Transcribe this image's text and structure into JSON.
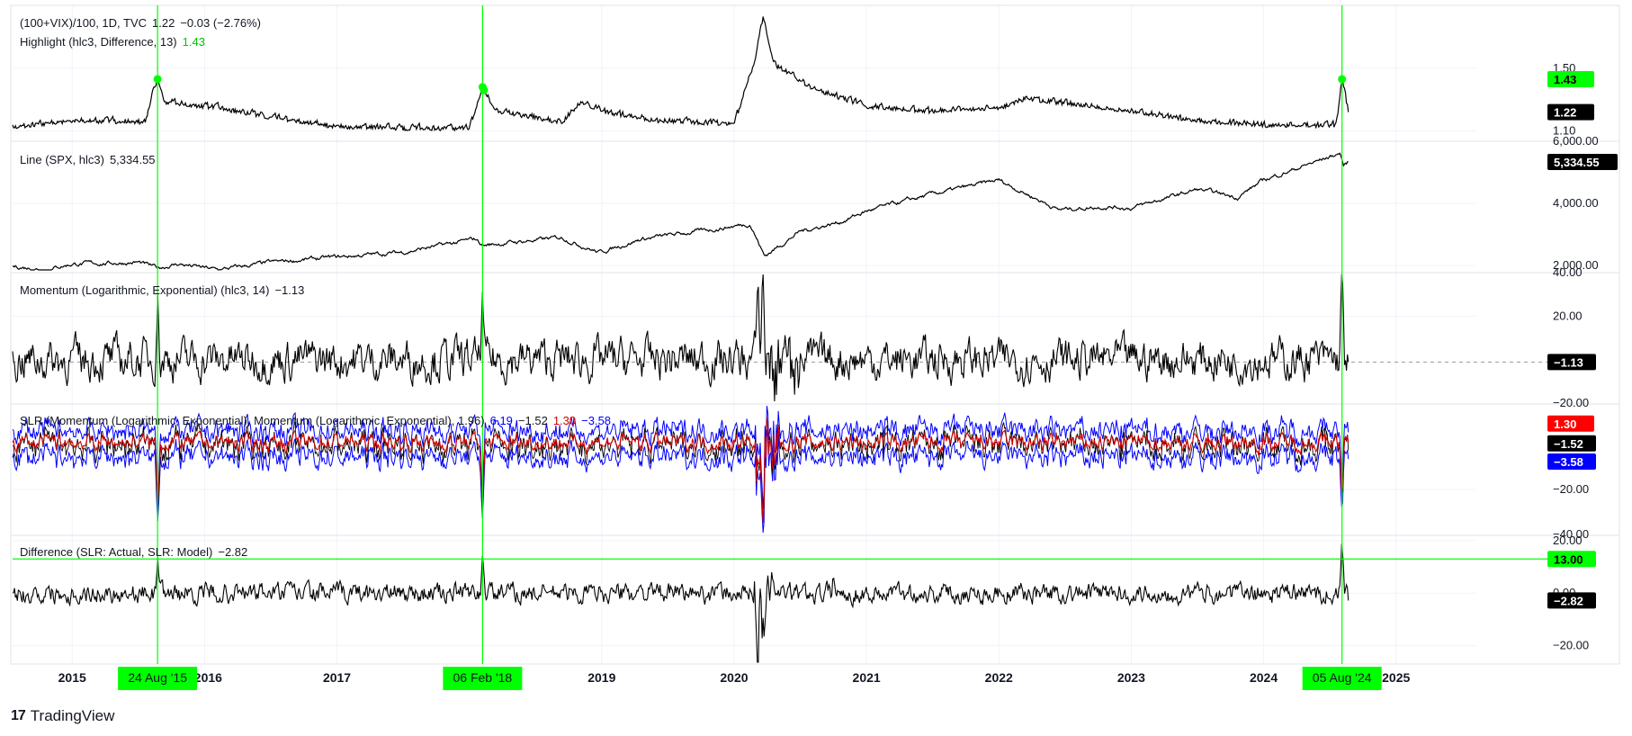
{
  "colors": {
    "series_line": "#000000",
    "event_line": "#00ff00",
    "event_label_bg": "#00ff00",
    "slr_fit": "#d00000",
    "slr_band": "#0000ff",
    "value_label_bg": "#000000",
    "value_label_text": "#ffffff",
    "grid": "#f0f3fa",
    "separator": "#e0e3eb"
  },
  "branding": {
    "logo_icon": "tradingview-logo-icon",
    "name": "TradingView"
  },
  "chart_data": [
    {
      "id": "vix",
      "type": "line",
      "legend": {
        "line1_name": "(100+VIX)/100, 1D, TVC",
        "line1_value": "1.22",
        "line1_change": "−0.03 (−2.76%)",
        "line2_name": "Highlight (hlc3, Difference, 13)",
        "line2_value": "1.43"
      },
      "ylim": [
        1.04,
        1.9
      ],
      "yticks": [
        "1.50",
        "1.10"
      ],
      "yticks_at": [
        1.5,
        1.1
      ],
      "last_value": 1.22,
      "last_value_label": "1.22",
      "marker_value_label": "1.43",
      "marker_value": 1.43,
      "highlight_points": [
        {
          "x": 2015.645,
          "y": 1.43
        },
        {
          "x": 2018.1,
          "y": 1.38
        },
        {
          "x": 2018.11,
          "y": 1.36
        },
        {
          "x": 2024.592,
          "y": 1.43
        }
      ],
      "anchors": [
        [
          2014.55,
          1.12
        ],
        [
          2015.0,
          1.16
        ],
        [
          2015.55,
          1.15
        ],
        [
          2015.645,
          1.43
        ],
        [
          2015.7,
          1.28
        ],
        [
          2016.1,
          1.24
        ],
        [
          2016.5,
          1.18
        ],
        [
          2017.0,
          1.12
        ],
        [
          2017.5,
          1.11
        ],
        [
          2018.0,
          1.11
        ],
        [
          2018.1,
          1.38
        ],
        [
          2018.2,
          1.22
        ],
        [
          2018.7,
          1.15
        ],
        [
          2018.85,
          1.28
        ],
        [
          2019.0,
          1.22
        ],
        [
          2019.4,
          1.16
        ],
        [
          2020.0,
          1.14
        ],
        [
          2020.15,
          1.52
        ],
        [
          2020.22,
          1.82
        ],
        [
          2020.3,
          1.52
        ],
        [
          2020.6,
          1.36
        ],
        [
          2021.0,
          1.25
        ],
        [
          2021.5,
          1.22
        ],
        [
          2022.0,
          1.24
        ],
        [
          2022.2,
          1.3
        ],
        [
          2022.5,
          1.27
        ],
        [
          2023.0,
          1.22
        ],
        [
          2023.5,
          1.16
        ],
        [
          2024.0,
          1.13
        ],
        [
          2024.55,
          1.13
        ],
        [
          2024.592,
          1.43
        ],
        [
          2024.64,
          1.22
        ]
      ],
      "wiggle": 0.02
    },
    {
      "id": "spx",
      "type": "line",
      "legend": {
        "name": "Line (SPX, hlc3)",
        "value": "5,334.55"
      },
      "ylim": [
        1800,
        6000
      ],
      "yticks": [
        "6,000.00",
        "4,000.00",
        "2,000.00"
      ],
      "yticks_at": [
        6000,
        4000,
        2000
      ],
      "last_value": 5334.55,
      "last_value_label": "5,334.55",
      "anchors": [
        [
          2014.55,
          1970
        ],
        [
          2014.8,
          1880
        ],
        [
          2015.0,
          2050
        ],
        [
          2015.5,
          2100
        ],
        [
          2015.645,
          1920
        ],
        [
          2015.8,
          2050
        ],
        [
          2016.1,
          1860
        ],
        [
          2016.5,
          2100
        ],
        [
          2017.0,
          2270
        ],
        [
          2017.5,
          2430
        ],
        [
          2018.05,
          2850
        ],
        [
          2018.1,
          2650
        ],
        [
          2018.7,
          2900
        ],
        [
          2018.98,
          2420
        ],
        [
          2019.3,
          2850
        ],
        [
          2019.9,
          3200
        ],
        [
          2020.12,
          3350
        ],
        [
          2020.23,
          2300
        ],
        [
          2020.5,
          3100
        ],
        [
          2020.8,
          3400
        ],
        [
          2021.0,
          3750
        ],
        [
          2021.5,
          4300
        ],
        [
          2022.0,
          4750
        ],
        [
          2022.45,
          3800
        ],
        [
          2022.8,
          3900
        ],
        [
          2023.0,
          3850
        ],
        [
          2023.5,
          4450
        ],
        [
          2023.8,
          4200
        ],
        [
          2024.0,
          4750
        ],
        [
          2024.5,
          5500
        ],
        [
          2024.58,
          5620
        ],
        [
          2024.6,
          5200
        ],
        [
          2024.64,
          5334
        ]
      ],
      "wiggle": 35
    },
    {
      "id": "momentum",
      "type": "line",
      "legend": {
        "name": "Momentum (Logarithmic, Exponential) (hlc3, 14)",
        "value": "−1.13"
      },
      "ylim": [
        -20,
        40
      ],
      "yticks": [
        "40.00",
        "20.00",
        "−20.00"
      ],
      "yticks_at": [
        40,
        20,
        -20
      ],
      "last_value": -1.13,
      "last_value_label": "−1.13",
      "spikes": [
        [
          2015.645,
          30
        ],
        [
          2018.1,
          27
        ],
        [
          2020.18,
          30
        ],
        [
          2020.22,
          38
        ],
        [
          2020.3,
          -10
        ],
        [
          2024.592,
          38
        ]
      ],
      "wiggle": 6
    },
    {
      "id": "slr",
      "type": "line",
      "legend": {
        "name": "SLR (Momentum (Logarithmic, Exponential), Momentum (Logarithmic, Exponential), 1.96)",
        "v1": "6.19",
        "v2": "−1.52",
        "v3": "1.30",
        "v4": "−3.58"
      },
      "ylim": [
        -40,
        18
      ],
      "yticks": [
        "−20.00",
        "−40.00"
      ],
      "yticks_at": [
        -20,
        -40
      ],
      "last_values": {
        "upper": 6.19,
        "actual": -1.52,
        "model": 1.3,
        "lower": -3.58
      },
      "last_value_labels": {
        "model": "1.30",
        "actual": "−1.52",
        "lower": "−3.58"
      },
      "series": [
        {
          "name": "upper",
          "color": "#0000ff"
        },
        {
          "name": "actual",
          "color": "#000000"
        },
        {
          "name": "model",
          "color": "#d00000"
        },
        {
          "name": "lower",
          "color": "#0000ff"
        }
      ],
      "spikes": [
        [
          2015.645,
          -32
        ],
        [
          2018.1,
          -28
        ],
        [
          2020.18,
          -25
        ],
        [
          2020.22,
          -36
        ],
        [
          2024.592,
          -30
        ]
      ],
      "wiggle": 4
    },
    {
      "id": "difference",
      "type": "line",
      "legend": {
        "name": "Difference (SLR: Actual, SLR: Model)",
        "value": "−2.82"
      },
      "ylim": [
        -27,
        22
      ],
      "yticks": [
        "20.00",
        "0.00",
        "−20.00"
      ],
      "yticks_at": [
        20,
        0,
        -20
      ],
      "threshold": 13,
      "threshold_label": "13.00",
      "last_value": -2.82,
      "last_value_label": "−2.82",
      "spikes": [
        [
          2015.645,
          12
        ],
        [
          2018.1,
          14
        ],
        [
          2020.18,
          -24
        ],
        [
          2020.22,
          -20
        ],
        [
          2020.75,
          8
        ],
        [
          2024.592,
          19
        ]
      ],
      "wiggle": 2.5
    }
  ],
  "x_axis": {
    "range": [
      2014.55,
      2025.6
    ],
    "ticks": [
      {
        "label": "2015",
        "x": 2015.0
      },
      {
        "label": "2016",
        "x": 2016.0
      },
      {
        "label": "2017",
        "x": 2017.0
      },
      {
        "label": "2019",
        "x": 2019.0
      },
      {
        "label": "2020",
        "x": 2020.0
      },
      {
        "label": "2021",
        "x": 2021.0
      },
      {
        "label": "2022",
        "x": 2022.0
      },
      {
        "label": "2023",
        "x": 2023.0
      },
      {
        "label": "2024",
        "x": 2024.0
      },
      {
        "label": "2025",
        "x": 2025.0
      }
    ],
    "event_labels": [
      {
        "label": "24 Aug '15",
        "x": 2015.645
      },
      {
        "label": "06 Feb '18",
        "x": 2018.1
      },
      {
        "label": "05 Aug '24",
        "x": 2024.592
      }
    ],
    "inline_ticks": [
      {
        "label": "2016",
        "x": 2016.0
      },
      {
        "label": "2017",
        "x": 2017.0
      }
    ]
  }
}
